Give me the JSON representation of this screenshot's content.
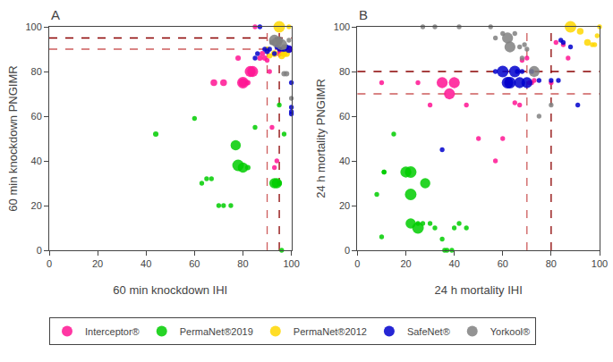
{
  "chart_data": [
    {
      "type": "scatter",
      "title": "A",
      "xlabel": "60 min knockdown IHI",
      "ylabel": "60 min knockdown PNGIMR",
      "xlim": [
        0,
        100
      ],
      "ylim": [
        0,
        100
      ],
      "xticks": [
        0,
        20,
        40,
        60,
        80,
        100
      ],
      "yticks": [
        0,
        20,
        40,
        60,
        80,
        100
      ],
      "grid": false,
      "legend": "lower left",
      "series": [
        {
          "name": "Interceptor®",
          "color": "#FF1493",
          "x": [
            68,
            72,
            78,
            80,
            80,
            82,
            83,
            84,
            85,
            87,
            88,
            89,
            90,
            91,
            92,
            93,
            94,
            95,
            96,
            97,
            98,
            99
          ],
          "y": [
            75,
            75,
            86,
            75,
            75,
            75,
            80,
            80,
            100,
            86,
            88,
            86,
            85,
            80,
            55,
            37,
            40,
            88,
            89,
            90,
            90,
            90
          ],
          "sizes": [
            6,
            6,
            4,
            10,
            18,
            4,
            16,
            16,
            3,
            4,
            4,
            4,
            3,
            3,
            3,
            3,
            3,
            4,
            10,
            6,
            6,
            6
          ]
        },
        {
          "name": "PermaNet®2019",
          "color": "#00CC00",
          "x": [
            44,
            60,
            63,
            65,
            67,
            70,
            72,
            75,
            77,
            78,
            80,
            82,
            85,
            93,
            94,
            95,
            95,
            96,
            97
          ],
          "y": [
            52,
            59,
            30,
            32,
            32,
            20,
            20,
            20,
            47,
            38,
            37,
            37,
            55,
            30,
            30,
            30,
            65,
            0,
            52
          ],
          "sizes": [
            4,
            3,
            3,
            3,
            3,
            3,
            3,
            3,
            14,
            18,
            14,
            4,
            3,
            14,
            14,
            4,
            3,
            3,
            3
          ]
        },
        {
          "name": "PermaNet®2012",
          "color": "#FFD700",
          "x": [
            90,
            91,
            93,
            95,
            96,
            97,
            98,
            99
          ],
          "y": [
            90,
            87,
            88,
            100,
            87,
            88,
            88,
            100
          ],
          "sizes": [
            4,
            4,
            6,
            18,
            6,
            6,
            6,
            3
          ]
        },
        {
          "name": "SafeNet®",
          "color": "#0000CC",
          "x": [
            85,
            86,
            87,
            89,
            90,
            91,
            93,
            94,
            95,
            96,
            97,
            98,
            99,
            100,
            100,
            100,
            100
          ],
          "y": [
            86,
            88,
            100,
            90,
            89,
            90,
            88,
            91,
            90,
            90,
            90,
            91,
            90,
            61,
            62,
            64,
            75
          ],
          "sizes": [
            3,
            3,
            3,
            3,
            4,
            3,
            3,
            3,
            3,
            3,
            4,
            3,
            8,
            3,
            3,
            3,
            3
          ]
        },
        {
          "name": "Yorkool®",
          "color": "#808080",
          "x": [
            92,
            93,
            94,
            95,
            96,
            97,
            97,
            98,
            99,
            100
          ],
          "y": [
            93,
            94,
            93,
            94,
            92,
            91,
            79,
            79,
            94,
            68
          ],
          "sizes": [
            4,
            16,
            14,
            8,
            16,
            4,
            4,
            4,
            3,
            3
          ]
        }
      ],
      "hlines": [
        {
          "value": 95,
          "color": "#8B0000",
          "line_style": "dashed"
        },
        {
          "value": 90,
          "color": "#CD5C5C",
          "line_style": "dashed"
        }
      ],
      "vlines": [
        {
          "value": 90,
          "color": "#CD5C5C",
          "line_style": "dashed"
        },
        {
          "value": 95,
          "color": "#8B0000",
          "line_style": "dashed"
        }
      ]
    },
    {
      "type": "scatter",
      "title": "B",
      "xlabel": "24 h mortality IHI",
      "ylabel": "24 h mortality PNGIMR",
      "xlim": [
        0,
        100
      ],
      "ylim": [
        0,
        100
      ],
      "xticks": [
        0,
        20,
        40,
        60,
        80,
        100
      ],
      "yticks": [
        0,
        20,
        40,
        60,
        80,
        100
      ],
      "grid": false,
      "legend": "lower left",
      "series": [
        {
          "name": "Interceptor®",
          "color": "#FF1493",
          "x": [
            10,
            25,
            30,
            35,
            38,
            40,
            45,
            50,
            57,
            60,
            62,
            65,
            67,
            68,
            70,
            71,
            72,
            73,
            80,
            82,
            85,
            87
          ],
          "y": [
            75,
            75,
            65,
            75,
            70,
            75,
            65,
            50,
            40,
            50,
            75,
            66,
            65,
            85,
            86,
            75,
            75,
            76,
            75,
            93,
            92,
            86
          ],
          "sizes": [
            3,
            3,
            3,
            16,
            16,
            16,
            3,
            3,
            3,
            3,
            4,
            3,
            3,
            3,
            3,
            3,
            3,
            3,
            3,
            3,
            3,
            3
          ]
        },
        {
          "name": "PermaNet®2019",
          "color": "#00CC00",
          "x": [
            8,
            10,
            11,
            11,
            15,
            20,
            22,
            22,
            22,
            25,
            25,
            27,
            28,
            30,
            32,
            35,
            36,
            37,
            39,
            40,
            42,
            45
          ],
          "y": [
            25,
            6,
            35,
            35,
            52,
            35,
            35,
            25,
            12,
            10,
            12,
            12,
            30,
            12,
            10,
            5,
            0,
            0,
            0,
            10,
            12,
            10
          ],
          "sizes": [
            3,
            3,
            3,
            3,
            3,
            16,
            18,
            18,
            14,
            18,
            3,
            3,
            14,
            3,
            3,
            3,
            3,
            3,
            3,
            3,
            3,
            3
          ]
        },
        {
          "name": "PermaNet®2012",
          "color": "#FFD700",
          "x": [
            88,
            92,
            95,
            97,
            98,
            99,
            100
          ],
          "y": [
            100,
            98,
            93,
            92,
            92,
            96,
            100
          ],
          "sizes": [
            18,
            6,
            6,
            3,
            3,
            3,
            3
          ]
        },
        {
          "name": "SafeNet®",
          "color": "#0000CC",
          "x": [
            35,
            57,
            60,
            62,
            63,
            65,
            66,
            67,
            68,
            70,
            72,
            75,
            80,
            83,
            84,
            85,
            88,
            91
          ],
          "y": [
            45,
            80,
            80,
            75,
            75,
            80,
            80,
            75,
            80,
            75,
            80,
            76,
            76,
            76,
            94,
            93,
            91,
            65
          ],
          "sizes": [
            3,
            3,
            18,
            18,
            18,
            18,
            3,
            16,
            3,
            16,
            3,
            3,
            3,
            3,
            3,
            3,
            3,
            3
          ]
        },
        {
          "name": "Yorkool®",
          "color": "#808080",
          "x": [
            27,
            32,
            42,
            55,
            57,
            60,
            62,
            63,
            65,
            67,
            68,
            69,
            70,
            73,
            75,
            80
          ],
          "y": [
            100,
            100,
            100,
            100,
            95,
            97,
            95,
            91,
            97,
            91,
            86,
            92,
            90,
            80,
            60,
            65
          ],
          "sizes": [
            3,
            3,
            3,
            3,
            3,
            3,
            16,
            16,
            3,
            3,
            3,
            3,
            3,
            16,
            3,
            3
          ]
        }
      ],
      "hlines": [
        {
          "value": 80,
          "color": "#8B0000",
          "line_style": "dashed"
        },
        {
          "value": 70,
          "color": "#CD5C5C",
          "line_style": "dashed"
        }
      ],
      "vlines": [
        {
          "value": 70,
          "color": "#CD5C5C",
          "line_style": "dashed"
        },
        {
          "value": 80,
          "color": "#8B0000",
          "line_style": "dashed"
        }
      ]
    }
  ]
}
